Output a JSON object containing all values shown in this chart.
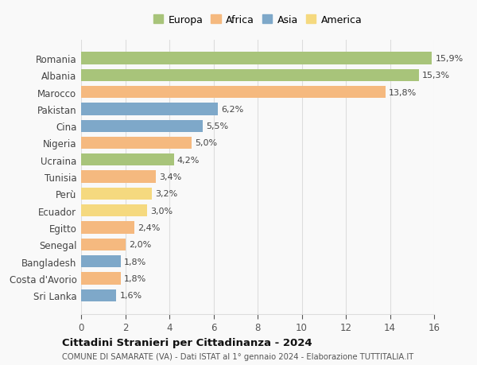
{
  "categories": [
    "Romania",
    "Albania",
    "Marocco",
    "Pakistan",
    "Cina",
    "Nigeria",
    "Ucraina",
    "Tunisia",
    "Perù",
    "Ecuador",
    "Egitto",
    "Senegal",
    "Bangladesh",
    "Costa d'Avorio",
    "Sri Lanka"
  ],
  "values": [
    15.9,
    15.3,
    13.8,
    6.2,
    5.5,
    5.0,
    4.2,
    3.4,
    3.2,
    3.0,
    2.4,
    2.0,
    1.8,
    1.8,
    1.6
  ],
  "labels": [
    "15,9%",
    "15,3%",
    "13,8%",
    "6,2%",
    "5,5%",
    "5,0%",
    "4,2%",
    "3,4%",
    "3,2%",
    "3,0%",
    "2,4%",
    "2,0%",
    "1,8%",
    "1,8%",
    "1,6%"
  ],
  "continents": [
    "Europa",
    "Europa",
    "Africa",
    "Asia",
    "Asia",
    "Africa",
    "Europa",
    "Africa",
    "America",
    "America",
    "Africa",
    "Africa",
    "Asia",
    "Africa",
    "Asia"
  ],
  "colors": {
    "Europa": "#a8c47a",
    "Africa": "#f5b97f",
    "Asia": "#7ea8c9",
    "America": "#f5d97f"
  },
  "legend_order": [
    "Europa",
    "Africa",
    "Asia",
    "America"
  ],
  "title": "Cittadini Stranieri per Cittadinanza - 2024",
  "subtitle": "COMUNE DI SAMARATE (VA) - Dati ISTAT al 1° gennaio 2024 - Elaborazione TUTTITALIA.IT",
  "xlim": [
    0,
    16
  ],
  "xticks": [
    0,
    2,
    4,
    6,
    8,
    10,
    12,
    14,
    16
  ],
  "background_color": "#f9f9f9",
  "grid_color": "#dddddd"
}
